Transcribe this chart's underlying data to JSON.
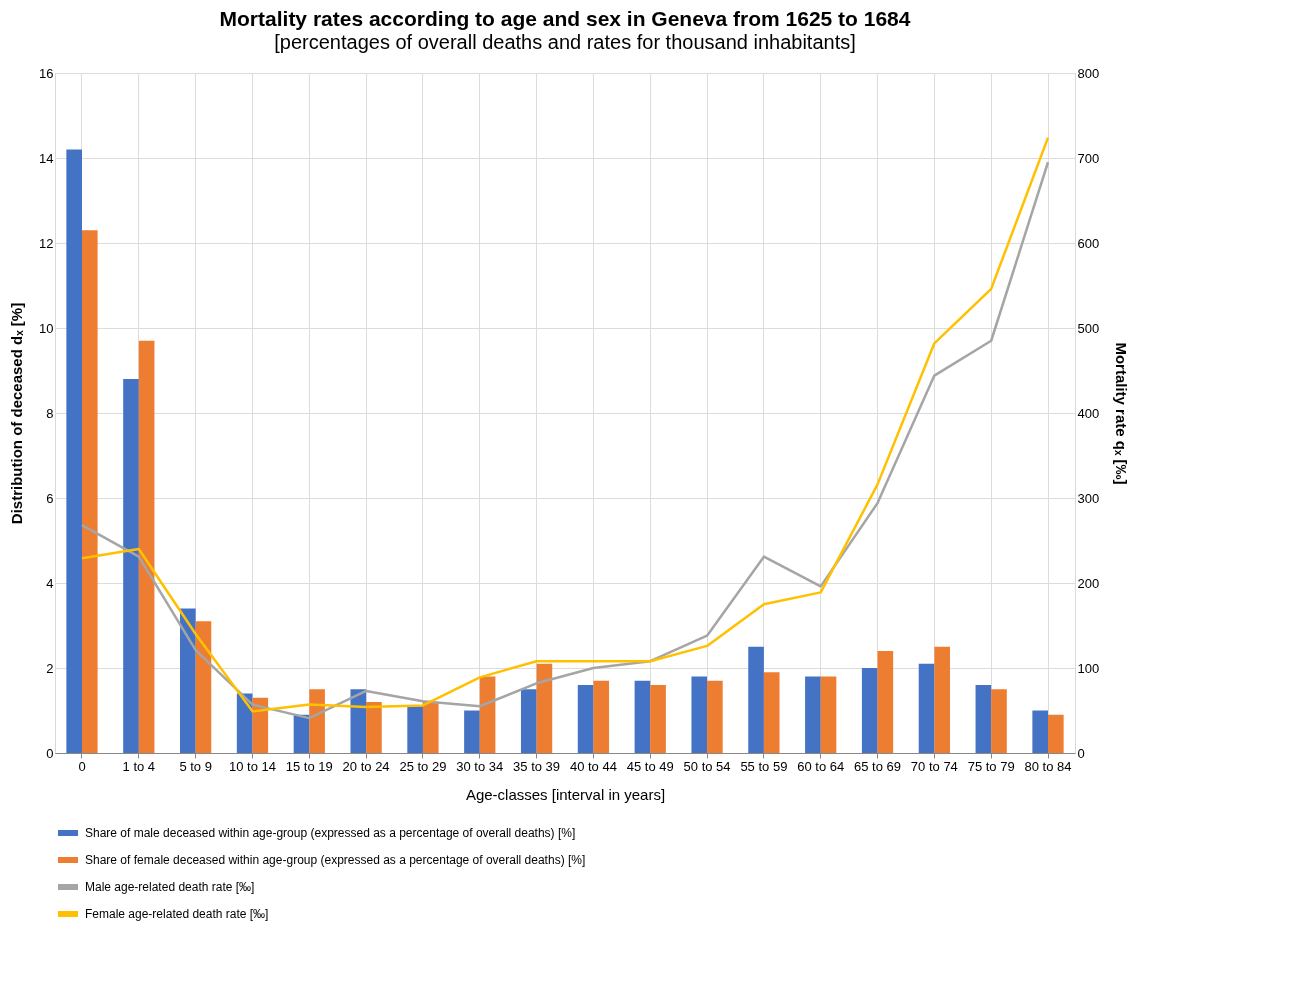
{
  "chart_data": {
    "type": "bar",
    "title": "Mortality rates according to age and sex in Geneva from 1625 to 1684",
    "subtitle": "[percentages of overall deaths and rates for thousand inhabitants]",
    "xlabel": "Age-classes [interval in years]",
    "ylabel": "Distribution of deceased dₓ [%]",
    "y2label": "Mortality rate qₓ [‰]",
    "categories": [
      "0",
      "1 to 4",
      "5 to 9",
      "10 to 14",
      "15 to 19",
      "20 to 24",
      "25 to 29",
      "30 to 34",
      "35 to 39",
      "40 to 44",
      "45 to 49",
      "50 to 54",
      "55 to 59",
      "60 to 64",
      "65 to 69",
      "70 to 74",
      "75 to 79",
      "80 to 84"
    ],
    "series": [
      {
        "name": "Share of male deceased within age-group (expressed as a percentage of overall deaths) [%]",
        "color": "#4472c4",
        "values": [
          14.2,
          8.8,
          3.4,
          1.4,
          0.9,
          1.5,
          1.1,
          1.0,
          1.5,
          1.6,
          1.7,
          1.8,
          2.5,
          1.8,
          2.0,
          2.1,
          1.6,
          1.0
        ]
      },
      {
        "name": "Share of female deceased within age-group (expressed as a percentage of overall deaths) [%]",
        "color": "#ed7d31",
        "values": [
          12.3,
          9.7,
          3.1,
          1.3,
          1.5,
          1.2,
          1.2,
          1.8,
          2.1,
          1.7,
          1.6,
          1.7,
          1.9,
          1.8,
          2.4,
          2.5,
          1.5,
          0.9
        ]
      },
      {
        "name": "Male age-related death rate [‰]",
        "type": "line",
        "axis": "y2",
        "color": "#a5a5a5",
        "values": [
          268,
          231,
          121,
          57,
          41,
          73,
          61,
          55,
          82,
          100,
          108,
          138,
          231,
          196,
          294,
          444,
          485,
          695
        ]
      },
      {
        "name": "Female age-related death rate [‰]",
        "type": "line",
        "axis": "y2",
        "color": "#ffc000",
        "values": [
          229,
          240,
          140,
          49,
          57,
          54,
          56,
          89,
          108,
          108,
          108,
          126,
          175,
          189,
          316,
          482,
          546,
          724
        ]
      }
    ],
    "ylim": [
      0,
      16
    ],
    "yticks": [
      0,
      2,
      4,
      6,
      8,
      10,
      12,
      14,
      16
    ],
    "y2lim": [
      0,
      800
    ],
    "y2ticks": [
      0,
      100,
      200,
      300,
      400,
      500,
      600,
      700,
      800
    ],
    "grid": true,
    "legend": "bottom"
  }
}
